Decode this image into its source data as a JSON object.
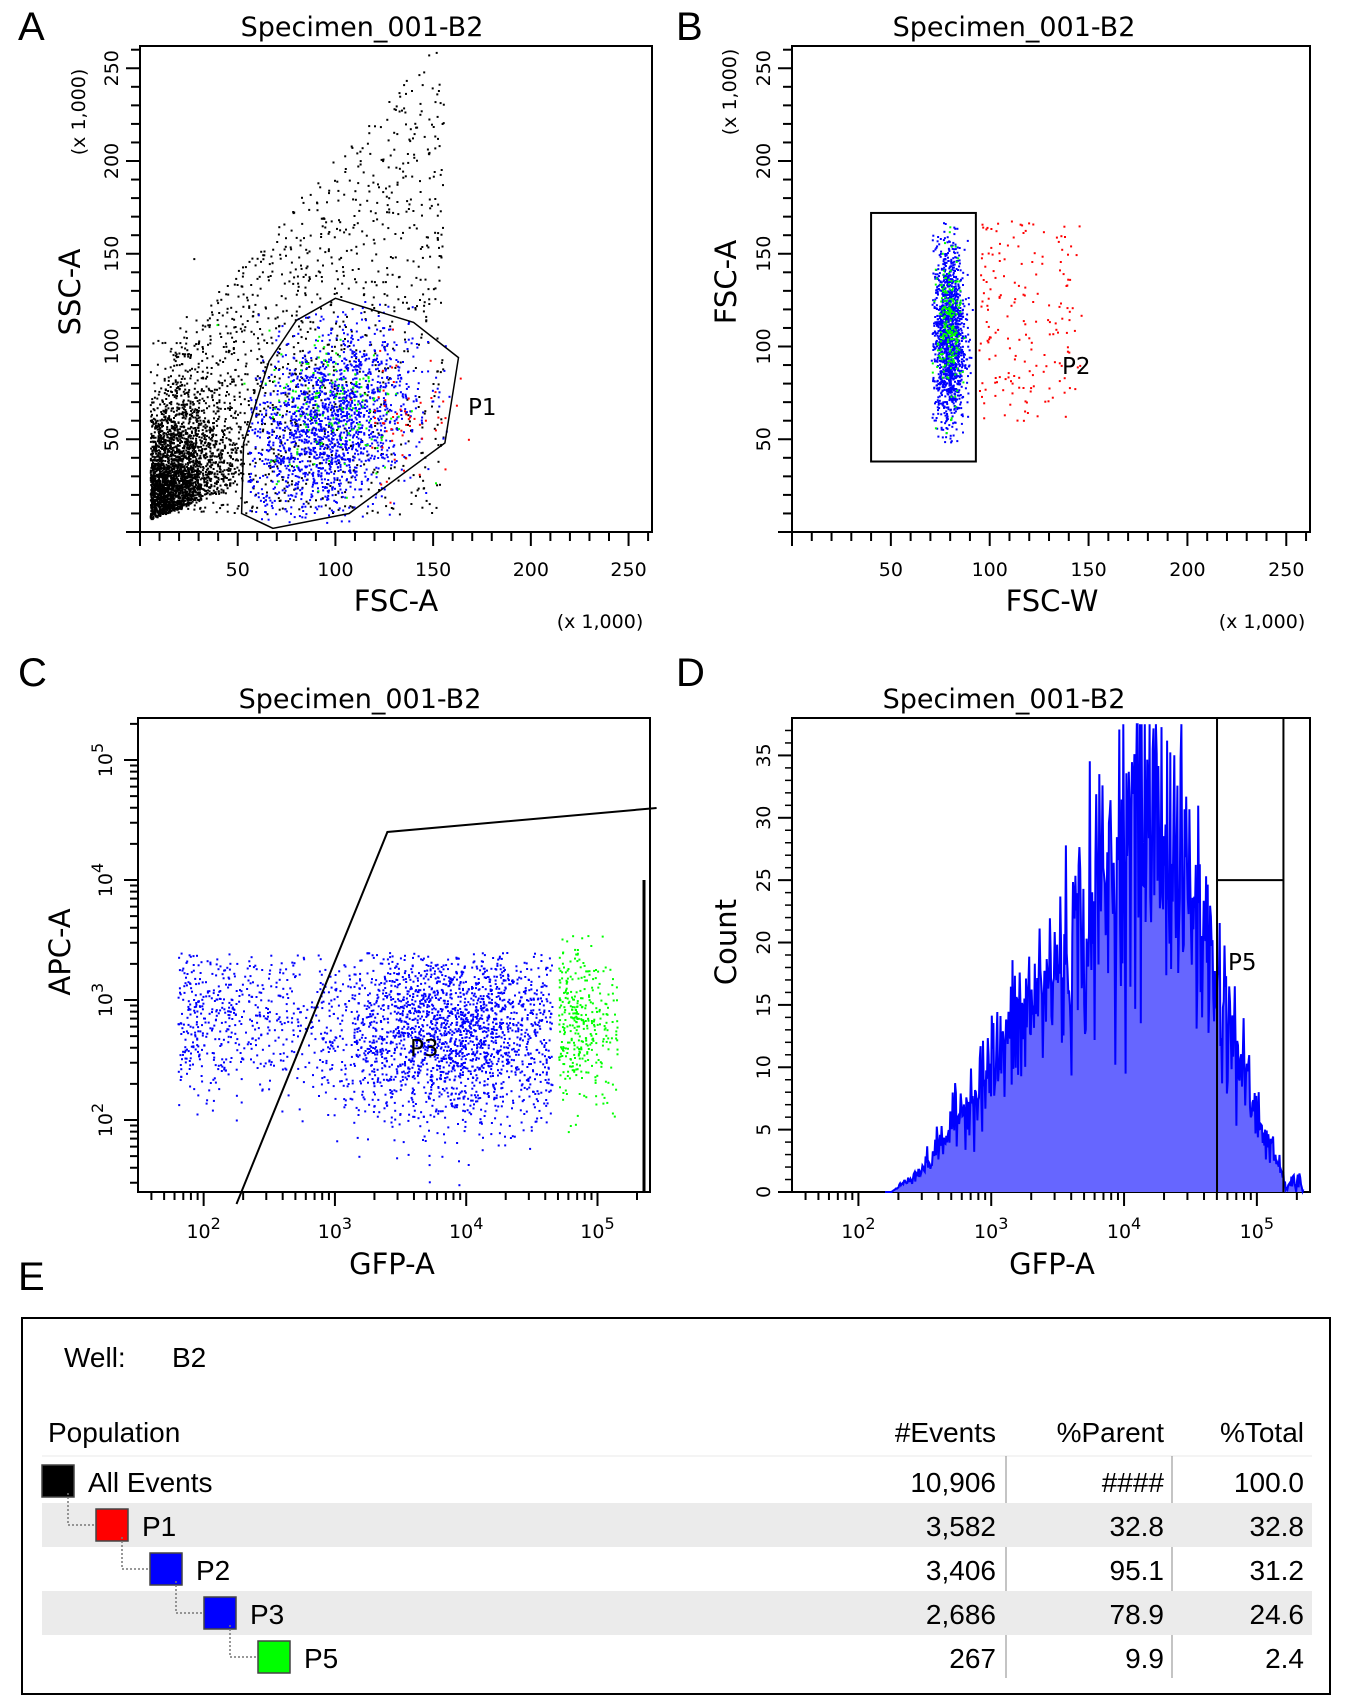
{
  "chart_data": [
    {
      "panel": "A",
      "type": "scatter",
      "title": "Specimen_001-B2",
      "xlabel": "FSC-A",
      "ylabel": "SSC-A",
      "x_scale_note": "(x 1,000)",
      "y_scale_note": "(x 1,000)",
      "xlim": [
        0,
        262
      ],
      "ylim": [
        0,
        262
      ],
      "x_ticks": [
        50,
        100,
        150,
        200,
        250
      ],
      "y_ticks": [
        50,
        100,
        150,
        200,
        250
      ],
      "gates": [
        {
          "name": "P1",
          "label": "P1",
          "polygon": [
            [
              52,
              10
            ],
            [
              68,
              2
            ],
            [
              107,
              10
            ],
            [
              156,
              48
            ],
            [
              163,
              94
            ],
            [
              140,
              113
            ],
            [
              100,
              126
            ],
            [
              80,
              114
            ],
            [
              66,
              92
            ],
            [
              53,
              48
            ]
          ]
        }
      ],
      "series_colors": {
        "all": "#000000",
        "P1": "#ff0000",
        "P2": "#0000ff",
        "P5": "#00ff00"
      }
    },
    {
      "panel": "B",
      "type": "scatter",
      "title": "Specimen_001-B2",
      "xlabel": "FSC-W",
      "ylabel": "FSC-A",
      "x_scale_note": "(x 1,000)",
      "y_scale_note": "(x 1,000)",
      "xlim": [
        0,
        262
      ],
      "ylim": [
        0,
        262
      ],
      "x_ticks": [
        50,
        100,
        150,
        200,
        250
      ],
      "y_ticks": [
        50,
        100,
        150,
        200,
        250
      ],
      "gates": [
        {
          "name": "P2",
          "label": "P2",
          "rect": {
            "x_min": 40,
            "x_max": 93,
            "y_min": 38,
            "y_max": 172
          }
        }
      ],
      "series_colors": {
        "P1": "#ff0000",
        "P2": "#0000ff",
        "P5": "#00ff00"
      }
    },
    {
      "panel": "C",
      "type": "scatter",
      "title": "Specimen_001-B2",
      "xlabel": "GFP-A",
      "ylabel": "APC-A",
      "x_scale": "log",
      "y_scale": "log",
      "x_ticks": [
        "10^2",
        "10^3",
        "10^4",
        "10^5"
      ],
      "y_ticks": [
        "10^2",
        "10^3",
        "10^4",
        "10^5"
      ],
      "gates": [
        {
          "name": "P3",
          "label": "P3",
          "polygon_log": [
            [
              2.25,
              1.3
            ],
            [
              3.4,
              4.4
            ],
            [
              5.45,
              4.6
            ]
          ]
        }
      ],
      "series_colors": {
        "P2": "#0000ff",
        "P5": "#00ff00"
      }
    },
    {
      "panel": "D",
      "type": "area",
      "title": "Specimen_001-B2",
      "xlabel": "GFP-A",
      "ylabel": "Count",
      "x_scale": "log",
      "ylim": [
        0,
        38
      ],
      "x_ticks": [
        "10^2",
        "10^3",
        "10^4",
        "10^5"
      ],
      "y_ticks": [
        0,
        5,
        10,
        15,
        20,
        25,
        30,
        35
      ],
      "histogram_profile": {
        "x_log": [
          2.25,
          2.5,
          2.75,
          3.0,
          3.25,
          3.5,
          3.75,
          4.0,
          4.25,
          4.5,
          4.75,
          5.0,
          5.25
        ],
        "count": [
          0,
          2,
          6,
          10,
          14,
          18,
          22,
          28,
          30,
          24,
          15,
          6,
          0
        ]
      },
      "gates": [
        {
          "name": "P5",
          "label": "P5",
          "x_min_log": 4.7,
          "x_max_log": 5.2
        }
      ],
      "fill_color": "#6666ff",
      "line_color": "#0000ff"
    }
  ],
  "panels": {
    "a": "A",
    "b": "B",
    "c": "C",
    "d": "D",
    "e": "E"
  },
  "table": {
    "well_label": "Well:",
    "well_value": "B2",
    "headers": {
      "population": "Population",
      "events": "#Events",
      "parent": "%Parent",
      "total": "%Total"
    },
    "rows": [
      {
        "name": "All Events",
        "color": "#000000",
        "events": "10,906",
        "parent": "####",
        "total": "100.0"
      },
      {
        "name": "P1",
        "color": "#ff0000",
        "events": "3,582",
        "parent": "32.8",
        "total": "32.8"
      },
      {
        "name": "P2",
        "color": "#0000ff",
        "events": "3,406",
        "parent": "95.1",
        "total": "31.2"
      },
      {
        "name": "P3",
        "color": "#0000ff",
        "events": "2,686",
        "parent": "78.9",
        "total": "24.6"
      },
      {
        "name": "P5",
        "color": "#00ff00",
        "events": "267",
        "parent": "9.9",
        "total": "2.4"
      }
    ]
  }
}
